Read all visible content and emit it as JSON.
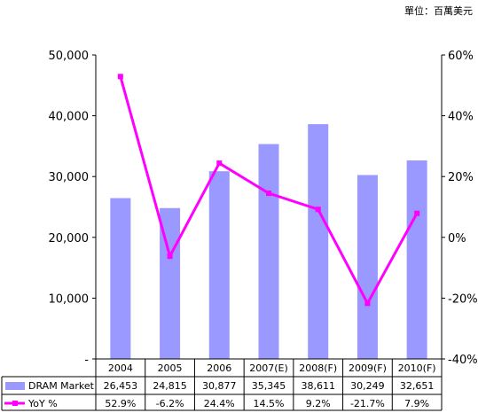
{
  "unit_note": "單位：百萬美元",
  "colors": {
    "bar": "#9999ff",
    "line": "#ff00ff",
    "axis": "#000000"
  },
  "chart_data": {
    "type": "bar",
    "categories": [
      "2004",
      "2005",
      "2006",
      "2007(E)",
      "2008(F)",
      "2009(F)",
      "2010(F)"
    ],
    "series": [
      {
        "name": "DRAM Market",
        "type": "bar",
        "axis": "left",
        "values": [
          26453,
          24815,
          30877,
          35345,
          38611,
          30249,
          32651
        ],
        "labels": [
          "26,453",
          "24,815",
          "30,877",
          "35,345",
          "38,611",
          "30,249",
          "32,651"
        ]
      },
      {
        "name": "YoY %",
        "type": "line",
        "axis": "right",
        "values": [
          52.9,
          -6.2,
          24.4,
          14.5,
          9.2,
          -21.7,
          7.9
        ],
        "labels": [
          "52.9%",
          "-6.2%",
          "24.4%",
          "14.5%",
          "9.2%",
          "-21.7%",
          "7.9%"
        ]
      }
    ],
    "y_left": {
      "ylim": [
        0,
        50000
      ],
      "ticks": [
        0,
        10000,
        20000,
        30000,
        40000,
        50000
      ],
      "tick_labels": [
        "-",
        "10,000",
        "20,000",
        "30,000",
        "40,000",
        "50,000"
      ]
    },
    "y_right": {
      "ylim": [
        -40,
        60
      ],
      "ticks": [
        -40,
        -20,
        0,
        20,
        40,
        60
      ],
      "tick_labels": [
        "-40%",
        "-20%",
        "0%",
        "20%",
        "40%",
        "60%"
      ]
    },
    "legend": "data-table"
  }
}
